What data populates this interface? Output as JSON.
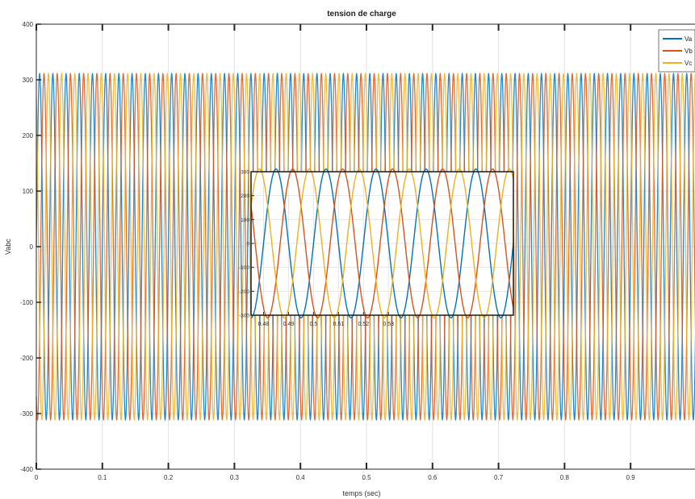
{
  "chart_data": {
    "type": "line",
    "title": "tension de charge",
    "xlabel": "temps (sec)",
    "ylabel": "Vabc",
    "xlim": [
      0,
      1
    ],
    "ylim": [
      -400,
      400
    ],
    "xticks": [
      0,
      0.1,
      0.2,
      0.3,
      0.4,
      0.5,
      0.6,
      0.7,
      0.8,
      0.9
    ],
    "xtick_labels": [
      "0",
      "0.1",
      "0.2",
      "0.3",
      "0.4",
      "0.5",
      "0.6",
      "0.7",
      "0.8",
      "0.9"
    ],
    "yticks": [
      -400,
      -300,
      -200,
      -100,
      0,
      100,
      200,
      300,
      400
    ],
    "ytick_labels": [
      "-400",
      "-300",
      "-200",
      "-100",
      "0",
      "100",
      "200",
      "300",
      "400"
    ],
    "grid": true,
    "legend_position": "top-right",
    "series": [
      {
        "name": "Va",
        "color": "#0072BD",
        "amplitude": 311,
        "frequency_hz": 50,
        "phase_deg": 0
      },
      {
        "name": "Vb",
        "color": "#D95319",
        "amplitude": 311,
        "frequency_hz": 50,
        "phase_deg": -120
      },
      {
        "name": "Vc",
        "color": "#EDB120",
        "amplitude": 311,
        "frequency_hz": 50,
        "phase_deg": 120
      }
    ],
    "inset": {
      "type": "line",
      "xlim": [
        0.475,
        0.58
      ],
      "ylim": [
        -300,
        300
      ],
      "xticks": [
        0.48,
        0.49,
        0.5,
        0.51,
        0.52,
        0.53
      ],
      "xtick_labels": [
        "0.48",
        "0.49",
        "0.5",
        "0.51",
        "0.52",
        "0.53"
      ],
      "yticks": [
        -300,
        -200,
        -100,
        0,
        100,
        200,
        300
      ],
      "ytick_labels": [
        "-300",
        "-200",
        "-100",
        "0",
        "100",
        "200",
        "300"
      ],
      "grid": true
    }
  }
}
